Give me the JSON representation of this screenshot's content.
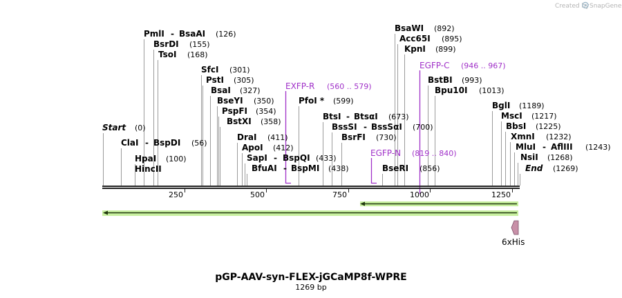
{
  "watermark": {
    "prefix": "Created by",
    "brand": "SnapGene"
  },
  "map": {
    "title": "pGP-AAV-syn-FLEX-jGCaMP8f-WPRE",
    "length_label": "1269 bp",
    "length_bp": 1269,
    "colors": {
      "enzyme": "#000000",
      "primer": "#a030c8",
      "arrow_fill": "#c8f0a0",
      "arrow_edge": "#223a10",
      "tag_fill": "#c890a8"
    }
  },
  "ticks": [
    "250",
    "500",
    "750",
    "1000",
    "1250"
  ],
  "sites": [
    {
      "name": "Start",
      "pos": "(0)",
      "italic": true
    },
    {
      "name": "ClaI",
      "pos": ""
    },
    {
      "name": "BspDI",
      "pos": "(56)"
    },
    {
      "name": "HpaI",
      "pos": "(100)"
    },
    {
      "name": "HincII",
      "pos": ""
    },
    {
      "name": "PmlI",
      "pos": ""
    },
    {
      "name": "BsaAI",
      "pos": "(126)"
    },
    {
      "name": "BsrDI",
      "pos": "(155)"
    },
    {
      "name": "TsoI",
      "pos": "(168)"
    },
    {
      "name": "SfcI",
      "pos": "(301)"
    },
    {
      "name": "PstI",
      "pos": "(305)"
    },
    {
      "name": "BsaI",
      "pos": "(327)"
    },
    {
      "name": "BseYI",
      "pos": "(350)"
    },
    {
      "name": "PspFI",
      "pos": "(354)"
    },
    {
      "name": "BstXI",
      "pos": "(358)"
    },
    {
      "name": "DraI",
      "pos": "(411)"
    },
    {
      "name": "ApoI",
      "pos": "(412)"
    },
    {
      "name": "SapI",
      "pos": ""
    },
    {
      "name": "BspQI",
      "pos": "(433)"
    },
    {
      "name": "BfuAI",
      "pos": ""
    },
    {
      "name": "BspMI",
      "pos": "(438)"
    },
    {
      "name": "PfoI *",
      "pos": "(599)"
    },
    {
      "name": "BtsI",
      "pos": ""
    },
    {
      "name": "BtsαI",
      "pos": "(673)"
    },
    {
      "name": "BssSI",
      "pos": ""
    },
    {
      "name": "BssSαI",
      "pos": "(700)"
    },
    {
      "name": "BsrFI",
      "pos": "(730)"
    },
    {
      "name": "BseRI",
      "pos": "(856)"
    },
    {
      "name": "BsaWI",
      "pos": "(892)"
    },
    {
      "name": "Acc65I",
      "pos": "(895)"
    },
    {
      "name": "KpnI",
      "pos": "(899)"
    },
    {
      "name": "BstBI",
      "pos": "(993)"
    },
    {
      "name": "Bpu10I",
      "pos": "(1013)"
    },
    {
      "name": "BglI",
      "pos": "(1189)"
    },
    {
      "name": "MscI",
      "pos": "(1217)"
    },
    {
      "name": "BbsI",
      "pos": "(1225)"
    },
    {
      "name": "XmnI",
      "pos": "(1232)"
    },
    {
      "name": "MluI",
      "pos": ""
    },
    {
      "name": "AflIII",
      "pos": "(1243)"
    },
    {
      "name": "NsiI",
      "pos": "(1268)"
    },
    {
      "name": "End",
      "pos": "(1269)",
      "italic": true
    }
  ],
  "primers": [
    {
      "name": "EXFP-R",
      "range": "(560 .. 579)",
      "start": 560,
      "end": 579
    },
    {
      "name": "EGFP-N",
      "range": "(819 .. 840)",
      "start": 819,
      "end": 840
    },
    {
      "name": "EGFP-C",
      "range": "(946 .. 967)",
      "start": 946,
      "end": 967
    }
  ],
  "features": [
    {
      "name": "",
      "start": 818,
      "end": 1269,
      "direction": "reverse"
    },
    {
      "name": "",
      "start": 0,
      "end": 1269,
      "direction": "reverse"
    },
    {
      "name": "6xHis",
      "start": 1251,
      "end": 1269,
      "direction": "reverse"
    }
  ]
}
